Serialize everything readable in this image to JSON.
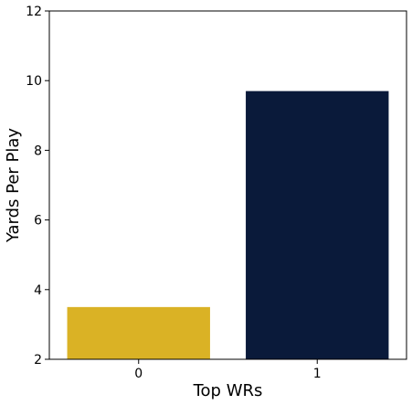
{
  "chart_data": {
    "type": "bar",
    "categories": [
      "0",
      "1"
    ],
    "values": [
      3.5,
      9.7
    ],
    "colors": [
      "#DAB225",
      "#0A1A3A"
    ],
    "title": "",
    "xlabel": "Top WRs",
    "ylabel": "Yards Per Play",
    "ylim": [
      2,
      12
    ],
    "yticks": [
      "2",
      "4",
      "6",
      "8",
      "10",
      "12"
    ],
    "grid": false,
    "legend": "none"
  }
}
